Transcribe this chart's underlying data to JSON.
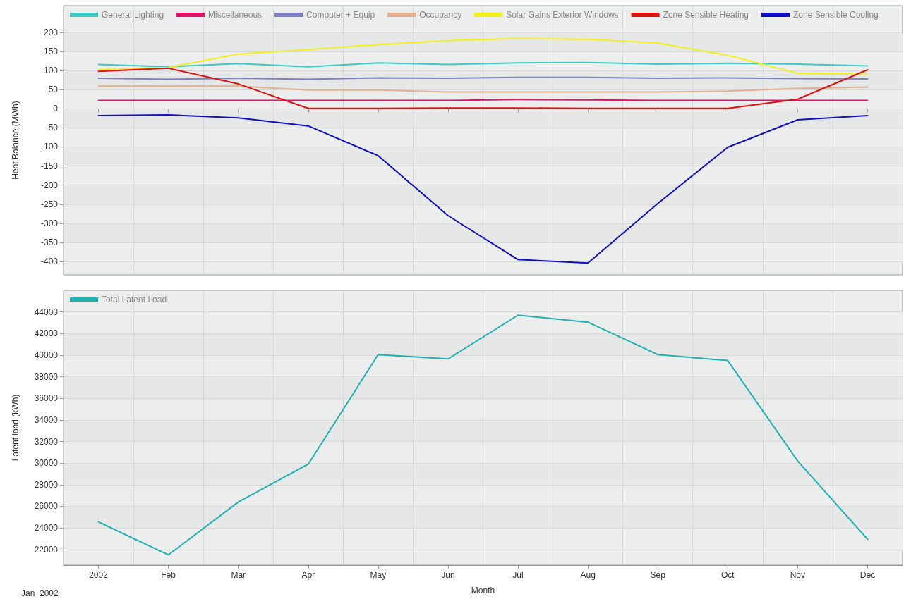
{
  "chart_data": [
    {
      "type": "line",
      "ylabel": "Heat Balance (MWh)",
      "categories": [
        null,
        null,
        null,
        null,
        null,
        null,
        null,
        null,
        null,
        null,
        null,
        null
      ],
      "tick_labels": "y",
      "ylim": [
        -435,
        270
      ],
      "yticks": [
        -400,
        -350,
        -300,
        -250,
        -200,
        -150,
        -100,
        -50,
        0,
        50,
        100,
        150,
        200
      ],
      "grid": true,
      "legend": "top left",
      "marker": "none",
      "line_style": "solid",
      "series": [
        {
          "name": "General Lighting",
          "color": "#40c8c0",
          "values": [
            116,
            110,
            118,
            110,
            120,
            116,
            120,
            121,
            117,
            119,
            117,
            112
          ]
        },
        {
          "name": "Miscellaneous",
          "color": "#e8106a",
          "values": [
            22,
            22,
            22,
            22,
            22,
            22,
            24,
            23,
            22,
            22,
            22,
            22
          ]
        },
        {
          "name": "Computer + Equip",
          "color": "#7f7fbf",
          "values": [
            80,
            77,
            80,
            77,
            81,
            80,
            82,
            82,
            80,
            81,
            79,
            78
          ]
        },
        {
          "name": "Occupancy",
          "color": "#e0b090",
          "values": [
            59,
            59,
            59,
            49,
            49,
            44,
            44,
            44,
            44,
            46,
            53,
            57
          ]
        },
        {
          "name": "Solar Gains Exterior Windows",
          "color": "#f0f020",
          "values": [
            102,
            108,
            143,
            155,
            168,
            178,
            184,
            182,
            172,
            140,
            93,
            90
          ]
        },
        {
          "name": "Zone Sensible Heating",
          "color": "#e01010",
          "values": [
            98,
            106,
            65,
            1,
            1,
            2,
            2,
            1,
            1,
            1,
            25,
            102
          ]
        },
        {
          "name": "Zone Sensible Cooling",
          "color": "#1010c0",
          "values": [
            -18,
            -16,
            -24,
            -45,
            -123,
            -280,
            -395,
            -404,
            -248,
            -101,
            -29,
            -18
          ]
        }
      ]
    },
    {
      "type": "line",
      "xlabel": "Month",
      "ylabel": "Latent load (kWh)",
      "categories": [
        "2002",
        "Feb",
        "Mar",
        "Apr",
        "May",
        "Jun",
        "Jul",
        "Aug",
        "Sep",
        "Oct",
        "Nov",
        "Dec"
      ],
      "ylim": [
        20550,
        46000
      ],
      "yticks": [
        22000,
        24000,
        26000,
        28000,
        30000,
        32000,
        34000,
        36000,
        38000,
        40000,
        42000,
        44000
      ],
      "grid": true,
      "legend": "top left",
      "marker": "none",
      "line_style": "solid",
      "annotations": [
        "Jan  2002"
      ],
      "series": [
        {
          "name": "Total Latent Load",
          "color": "#20b0b0",
          "values": [
            24550,
            21500,
            26400,
            29900,
            40050,
            39650,
            43700,
            43050,
            40050,
            39500,
            30200,
            22950
          ]
        }
      ]
    }
  ]
}
